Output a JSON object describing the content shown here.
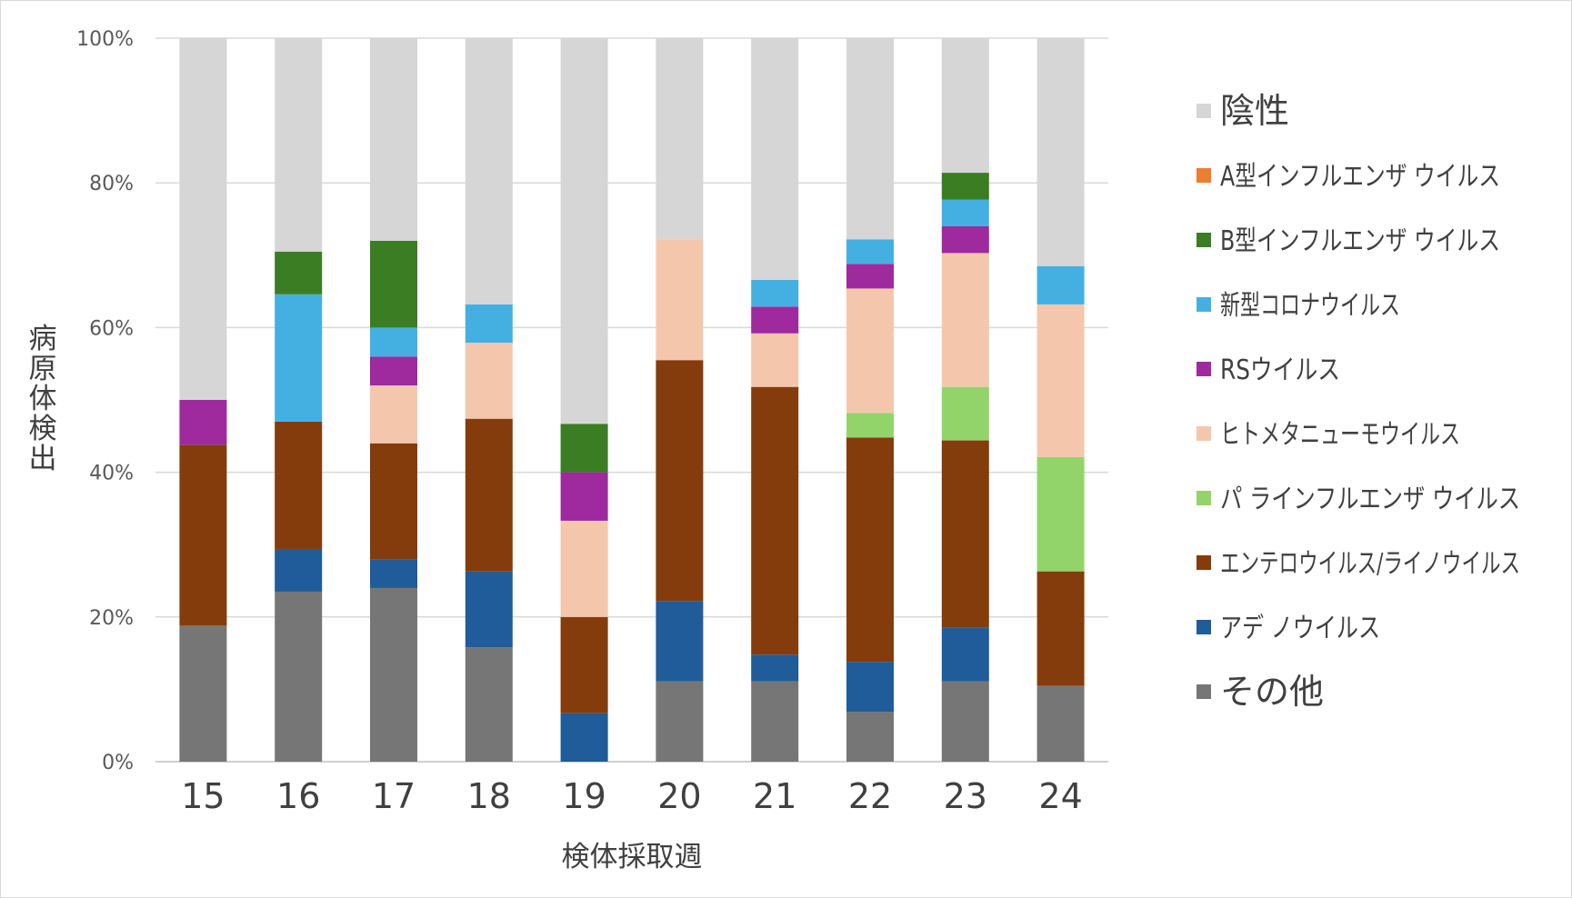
{
  "chart_data": {
    "type": "bar",
    "stacked": true,
    "percent": true,
    "xlabel": "検体採取週",
    "ylabel": "病原体検出",
    "ylim": [
      0,
      100
    ],
    "y_ticks": [
      "0%",
      "20%",
      "40%",
      "60%",
      "80%",
      "100%"
    ],
    "categories": [
      "15",
      "16",
      "17",
      "18",
      "19",
      "20",
      "21",
      "22",
      "23",
      "24"
    ],
    "grid": true,
    "legend_position": "right",
    "series": [
      {
        "name": "その他",
        "color": "#767676",
        "values": [
          18.8,
          23.5,
          24.0,
          15.8,
          0,
          11.1,
          11.1,
          6.9,
          11.1,
          10.5
        ]
      },
      {
        "name": "アデ ノウイルス",
        "color": "#1f5c99",
        "values": [
          0,
          5.9,
          4.0,
          10.5,
          6.7,
          11.1,
          3.7,
          6.9,
          7.4,
          0
        ]
      },
      {
        "name": "エンテロウイルス/ライノウイルス",
        "color": "#843c0c",
        "values": [
          25.0,
          17.6,
          16.0,
          21.1,
          13.3,
          33.3,
          37.0,
          31.0,
          25.9,
          15.8
        ]
      },
      {
        "name": "パ ラインフルエンザ ウイルス",
        "color": "#92d46a",
        "values": [
          0,
          0,
          0,
          0,
          0,
          0,
          0,
          3.4,
          7.4,
          15.8
        ]
      },
      {
        "name": "ヒトメタニューモウイルス",
        "color": "#f4c7ad",
        "values": [
          0,
          0,
          8.0,
          10.5,
          13.3,
          16.7,
          7.4,
          17.2,
          18.5,
          21.1
        ]
      },
      {
        "name": "RSウイルス",
        "color": "#9e2a9e",
        "values": [
          6.2,
          0,
          4.0,
          0,
          6.7,
          0,
          3.7,
          3.4,
          3.7,
          0
        ]
      },
      {
        "name": "新型コロナウイルス",
        "color": "#44b0e2",
        "values": [
          0,
          17.6,
          4.0,
          5.3,
          0,
          0,
          3.7,
          3.4,
          3.7,
          5.3
        ]
      },
      {
        "name": "B型インフルエンザ ウイルス",
        "color": "#3b7d23",
        "values": [
          0,
          5.9,
          12.0,
          0,
          6.7,
          0,
          0,
          0,
          3.7,
          0
        ]
      },
      {
        "name": "A型インフルエンザ ウイルス",
        "color": "#ed7d31",
        "values": [
          0,
          0,
          0,
          0,
          0,
          0,
          0,
          0,
          0,
          0
        ]
      },
      {
        "name": "陰性",
        "color": "#d6d6d6",
        "values": [
          50.0,
          29.5,
          28.0,
          36.8,
          53.3,
          27.8,
          33.4,
          27.8,
          18.6,
          31.5
        ]
      }
    ]
  }
}
